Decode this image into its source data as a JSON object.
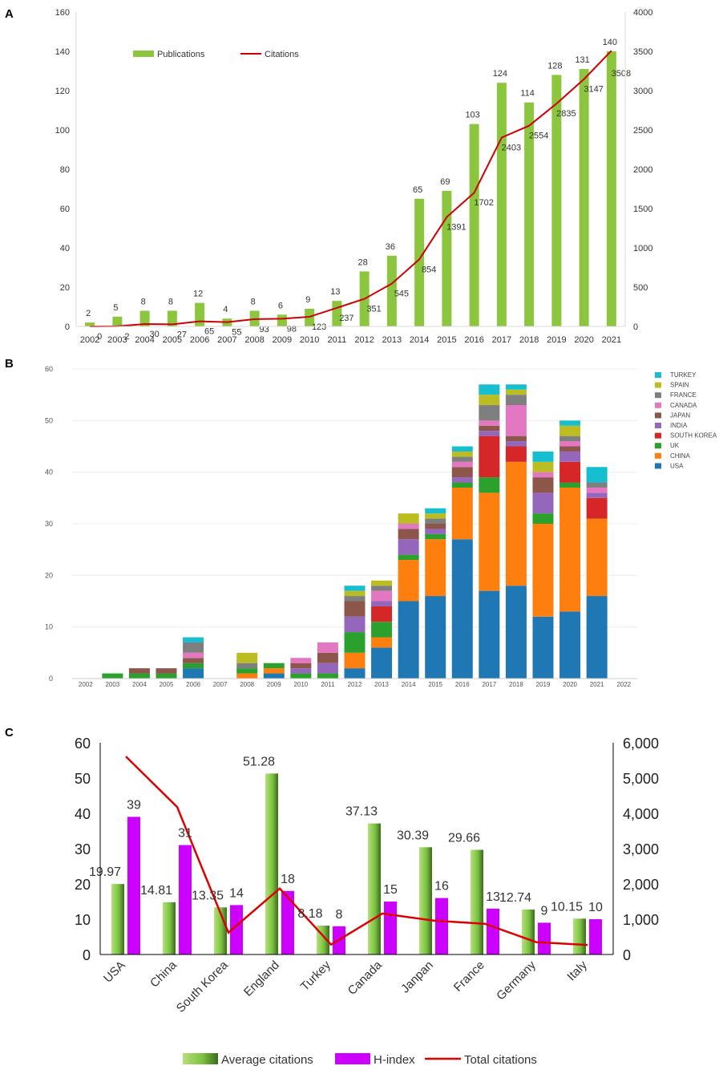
{
  "panels": [
    {
      "letter": "A",
      "chart_data": {
        "type": "bar+line",
        "title": "",
        "categories": [
          "2002",
          "2003",
          "2004",
          "2005",
          "2006",
          "2007",
          "2008",
          "2009",
          "2010",
          "2011",
          "2012",
          "2013",
          "2014",
          "2015",
          "2016",
          "2017",
          "2018",
          "2019",
          "2020",
          "2021"
        ],
        "series": [
          {
            "name": "Publications",
            "type": "bar",
            "axis": "left",
            "values": [
              2,
              5,
              8,
              8,
              12,
              4,
              8,
              6,
              9,
              13,
              28,
              36,
              65,
              69,
              103,
              124,
              114,
              128,
              131,
              140
            ]
          },
          {
            "name": "Citations",
            "type": "line",
            "axis": "right",
            "values": [
              0,
              2,
              30,
              27,
              65,
              55,
              93,
              98,
              123,
              237,
              351,
              545,
              854,
              1391,
              1702,
              2403,
              2554,
              2835,
              3147,
              3508
            ]
          }
        ],
        "ylim_left": [
          0,
          160
        ],
        "yticks_left": [
          "0",
          "20",
          "40",
          "60",
          "80",
          "100",
          "120",
          "140",
          "160"
        ],
        "ylim_right": [
          0,
          4000
        ],
        "yticks_right": [
          "0",
          "500",
          "1000",
          "1500",
          "2000",
          "2500",
          "3000",
          "3500",
          "4000"
        ],
        "legend_position": "top-left",
        "colors": {
          "bar": "#8cc63f",
          "line": "#cc0000"
        }
      }
    },
    {
      "letter": "B",
      "chart_data": {
        "type": "stacked-bar",
        "categories": [
          "2002",
          "2003",
          "2004",
          "2005",
          "2006",
          "2007",
          "2008",
          "2009",
          "2010",
          "2011",
          "2012",
          "2013",
          "2014",
          "2015",
          "2016",
          "2017",
          "2018",
          "2019",
          "2020",
          "2021",
          "2022"
        ],
        "series": [
          {
            "name": "USA",
            "color": "#1f77b4",
            "values": [
              0,
              0,
              0,
              0,
              2,
              0,
              0,
              1,
              0,
              0,
              2,
              6,
              15,
              16,
              27,
              17,
              18,
              12,
              13,
              16,
              0
            ]
          },
          {
            "name": "CHINA",
            "color": "#ff7f0e",
            "values": [
              0,
              0,
              0,
              0,
              0,
              0,
              1,
              1,
              0,
              0,
              3,
              2,
              8,
              11,
              10,
              19,
              24,
              18,
              24,
              15,
              0
            ]
          },
          {
            "name": "UK",
            "color": "#2ca02c",
            "values": [
              0,
              1,
              1,
              1,
              1,
              0,
              1,
              1,
              1,
              1,
              4,
              3,
              1,
              1,
              1,
              3,
              0,
              2,
              1,
              0,
              0
            ]
          },
          {
            "name": "SOUTH KOREA",
            "color": "#d62728",
            "values": [
              0,
              0,
              0,
              0,
              0,
              0,
              0,
              0,
              0,
              0,
              0,
              3,
              0,
              0,
              0,
              8,
              3,
              0,
              4,
              4,
              0
            ]
          },
          {
            "name": "INDIA",
            "color": "#9467bd",
            "values": [
              0,
              0,
              0,
              0,
              0,
              0,
              0,
              0,
              1,
              2,
              3,
              1,
              3,
              1,
              1,
              1,
              1,
              4,
              2,
              1,
              0
            ]
          },
          {
            "name": "JAPAN",
            "color": "#8c564b",
            "values": [
              0,
              0,
              1,
              1,
              1,
              0,
              0,
              0,
              1,
              2,
              3,
              0,
              2,
              1,
              2,
              1,
              1,
              3,
              1,
              0,
              0
            ]
          },
          {
            "name": "CANADA",
            "color": "#e377c2",
            "values": [
              0,
              0,
              0,
              0,
              1,
              0,
              0,
              0,
              1,
              2,
              0,
              2,
              1,
              0,
              1,
              1,
              6,
              1,
              1,
              1,
              0
            ]
          },
          {
            "name": "FRANCE",
            "color": "#7f7f7f",
            "values": [
              0,
              0,
              0,
              0,
              2,
              0,
              1,
              0,
              0,
              0,
              1,
              1,
              0,
              1,
              1,
              3,
              2,
              0,
              1,
              1,
              0
            ]
          },
          {
            "name": "SPAIN",
            "color": "#bcbd22",
            "values": [
              0,
              0,
              0,
              0,
              0,
              0,
              2,
              0,
              0,
              0,
              1,
              1,
              2,
              1,
              1,
              2,
              1,
              2,
              2,
              0,
              0
            ]
          },
          {
            "name": "TURKEY",
            "color": "#17becf",
            "values": [
              0,
              0,
              0,
              0,
              1,
              0,
              0,
              0,
              0,
              0,
              1,
              0,
              0,
              1,
              1,
              2,
              1,
              2,
              1,
              3,
              0
            ]
          }
        ],
        "ylim": [
          0,
          60
        ],
        "yticks": [
          "0",
          "10",
          "20",
          "30",
          "40",
          "50",
          "60"
        ],
        "legend_position": "right",
        "grid": true
      }
    },
    {
      "letter": "C",
      "chart_data": {
        "type": "bar+line",
        "categories": [
          "USA",
          "China",
          "South Korea",
          "England",
          "Turkey",
          "Canada",
          "Janpan",
          "France",
          "Germany",
          "Italy"
        ],
        "series": [
          {
            "name": "Average citations",
            "type": "bar",
            "axis": "left",
            "values": [
              19.97,
              14.81,
              13.35,
              51.28,
              8.18,
              37.13,
              30.39,
              29.66,
              12.74,
              10.15
            ],
            "labels": [
              "19.97",
              "14.81",
              "13.35",
              "51.28",
              "8.18",
              "37.13",
              "30.39",
              "29.66",
              "12.74",
              "10.15"
            ]
          },
          {
            "name": "H-index",
            "type": "bar",
            "axis": "left",
            "values": [
              39,
              31,
              14,
              18,
              8,
              15,
              16,
              13,
              9,
              10
            ],
            "labels": [
              "39",
              "31",
              "14",
              "18",
              "8",
              "15",
              "16",
              "13",
              "9",
              "10"
            ]
          },
          {
            "name": "Total citations",
            "type": "line",
            "axis": "right",
            "values": [
              5610,
              4180,
              620,
              1870,
              280,
              1160,
              960,
              870,
              350,
              270
            ]
          }
        ],
        "ylim_left": [
          0,
          60
        ],
        "yticks_left": [
          "0",
          "10",
          "20",
          "30",
          "40",
          "50",
          "60"
        ],
        "ylim_right": [
          0,
          6000
        ],
        "yticks_right": [
          "0",
          "1,000",
          "2,000",
          "3,000",
          "4,000",
          "5,000",
          "6,000"
        ],
        "legend_position": "bottom",
        "colors": {
          "bar1": "#7cc242",
          "bar2": "#cc00ff",
          "line": "#dd0000"
        }
      }
    }
  ]
}
